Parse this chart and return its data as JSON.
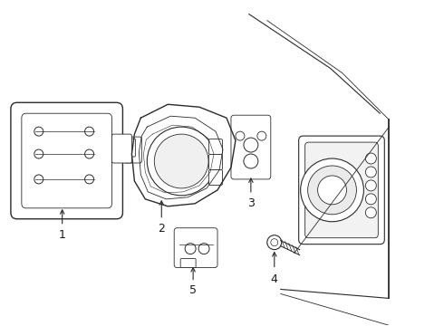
{
  "background_color": "#ffffff",
  "line_color": "#2a2a2a",
  "label_color": "#1a1a1a",
  "lw_main": 1.0,
  "lw_thin": 0.6,
  "lw_med": 0.8
}
